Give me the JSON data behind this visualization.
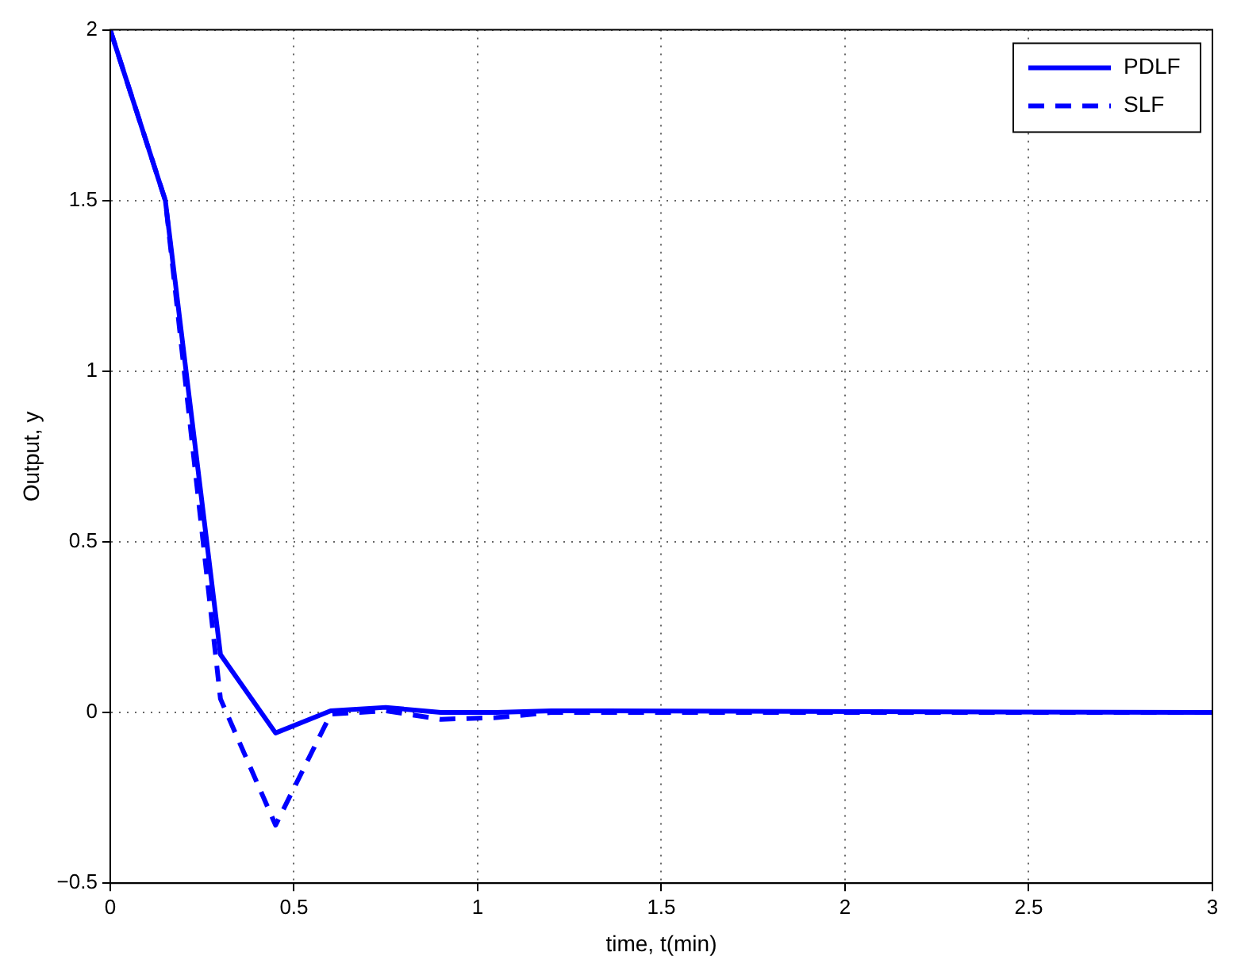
{
  "chart_data": {
    "type": "line",
    "xlabel": "time, t(min)",
    "ylabel": "Output, y",
    "x": [
      0,
      0.15,
      0.3,
      0.45,
      0.6,
      0.75,
      0.9,
      1.05,
      1.2,
      3
    ],
    "series": [
      {
        "name": "PDLF",
        "color": "#0000ff",
        "line_style": "solid",
        "values": [
          2,
          1.5,
          0.17,
          -0.06,
          0.005,
          0.015,
          0,
          0,
          0.005,
          0
        ]
      },
      {
        "name": "SLF",
        "color": "#0000ff",
        "line_style": "dashed",
        "values": [
          2,
          1.5,
          0.04,
          -0.33,
          -0.005,
          0.005,
          -0.02,
          -0.015,
          0,
          0
        ]
      }
    ],
    "xlim": [
      0,
      3
    ],
    "xticks": [
      0,
      0.5,
      1,
      1.5,
      2,
      2.5,
      3
    ],
    "ylim": [
      -0.5,
      2
    ],
    "yticks": [
      -0.5,
      0,
      0.5,
      1,
      1.5,
      2
    ],
    "grid": true,
    "legend": "top right",
    "marker": "none"
  }
}
